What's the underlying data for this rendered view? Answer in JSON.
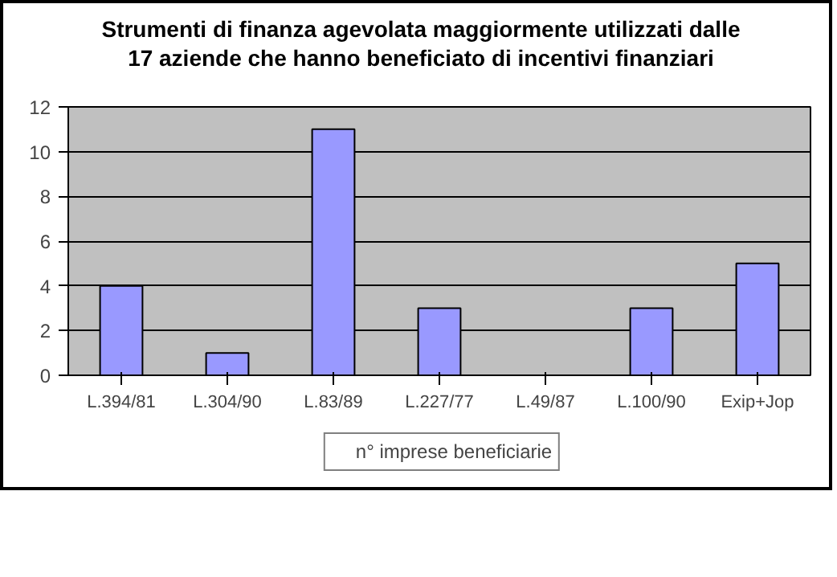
{
  "chart_data": {
    "type": "bar",
    "title": "Strumenti di finanza agevolata maggiormente utilizzati dalle 17 aziende che hanno beneficiato di incentivi finanziari",
    "categories": [
      "L.394/81",
      "L.304/90",
      "L.83/89",
      "L.227/77",
      "L.49/87",
      "L.100/90",
      "Exip+Jop"
    ],
    "series": [
      {
        "name": "n° imprese beneficiarie",
        "color": "#9999ff",
        "values": [
          4,
          1,
          11,
          3,
          0,
          3,
          5
        ]
      }
    ],
    "ylim": [
      0,
      12
    ],
    "yticks": [
      0,
      2,
      4,
      6,
      8,
      10,
      12
    ],
    "grid": "y",
    "legend": "bottom"
  }
}
